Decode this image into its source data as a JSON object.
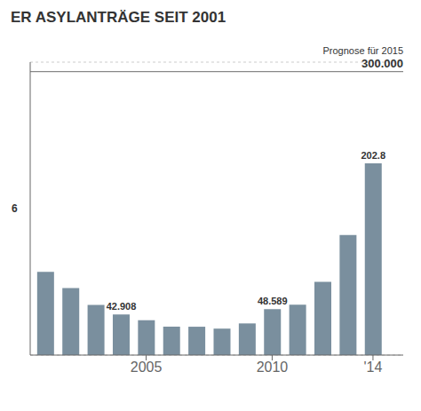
{
  "chart_data": {
    "type": "bar",
    "title": "ER ASYLANTRÄGE SEIT 2001",
    "x": [
      2001,
      2002,
      2003,
      2004,
      2005,
      2006,
      2007,
      2008,
      2009,
      2010,
      2011,
      2012,
      2013,
      2014
    ],
    "values": [
      88000,
      71000,
      53000,
      42908,
      36900,
      30100,
      30000,
      28000,
      33500,
      48589,
      53300,
      77600,
      127000,
      202815
    ],
    "color": "#7a8f9e",
    "xlim": [
      2000.4,
      2015.2
    ],
    "xticks": [
      2005,
      2010,
      {
        "value": 2014,
        "label": "'14"
      }
    ],
    "ylim": [
      0,
      310000
    ],
    "yticks": [
      50000,
      100000,
      150000,
      200000,
      250000,
      300000
    ],
    "grid": true,
    "tick_labels": "x",
    "annotations": [
      {
        "text": "42.908",
        "x": 2004,
        "y": 42908
      },
      {
        "text": "48.589",
        "x": 2010,
        "y": 48589
      },
      {
        "text": "202.8",
        "x": 2014,
        "y": 202815
      },
      {
        "text": "6"
      }
    ],
    "reference_line": {
      "y": 300000,
      "label": "Prognose für 2015",
      "value_label": "300.000"
    }
  }
}
